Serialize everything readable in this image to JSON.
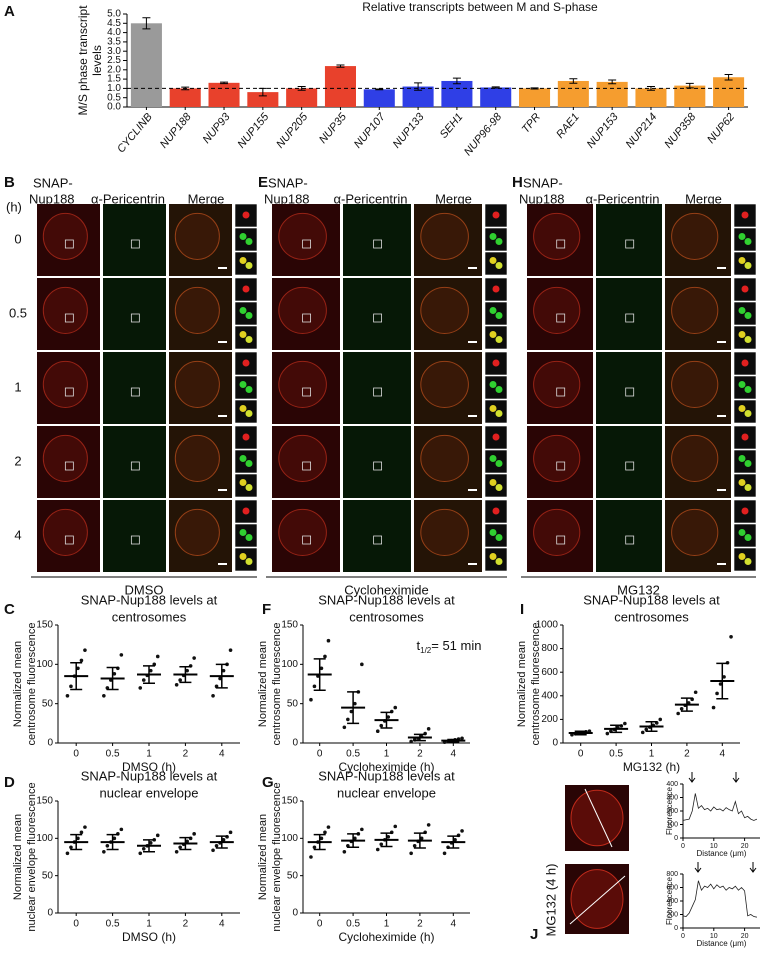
{
  "figure_labels": [
    "A",
    "B",
    "C",
    "D",
    "E",
    "F",
    "G",
    "H",
    "I",
    "J"
  ],
  "time_axis": {
    "unit": "(h)",
    "labels": [
      "0",
      "0.5",
      "1",
      "2",
      "4"
    ]
  },
  "microscopy": [
    {
      "headers": [
        "SNAP-",
        "Nup188",
        "α-Pericentrin",
        "Merge"
      ],
      "treatment": "DMSO"
    },
    {
      "headers": [
        "SNAP-",
        "Nup188",
        "α-Pericentrin",
        "Merge"
      ],
      "treatment": "Cycloheximide"
    },
    {
      "headers": [
        "SNAP-",
        "Nup188",
        "α-Pericentrin",
        "Merge"
      ],
      "treatment": "MG132"
    }
  ],
  "profile_images_label": "MG132 (4 h)",
  "chart_data": [
    {
      "type": "bar",
      "title": "Relative transcripts between M and S-phase",
      "ylabel": [
        "M/S phase transcript",
        "levels"
      ],
      "categories": [
        "CYCLINB",
        "NUP188",
        "NUP93",
        "NUP155",
        "NUP205",
        "NUP35",
        "NUP107",
        "NUP133",
        "SEH1",
        "NUP96-98",
        "TPR",
        "RAE1",
        "NUP153",
        "NUP214",
        "NUP358",
        "NUP62"
      ],
      "values": [
        4.5,
        1.0,
        1.3,
        0.8,
        1.0,
        2.2,
        0.95,
        1.1,
        1.4,
        1.05,
        1.0,
        1.4,
        1.35,
        1.0,
        1.15,
        1.6
      ],
      "errors": [
        0.3,
        0.07,
        0.04,
        0.2,
        0.1,
        0.06,
        0.02,
        0.2,
        0.15,
        0.03,
        0.03,
        0.12,
        0.1,
        0.1,
        0.12,
        0.15
      ],
      "colors": [
        "#9a9a9a",
        "#e8412c",
        "#e8412c",
        "#e8412c",
        "#e8412c",
        "#e8412c",
        "#2f3fe6",
        "#2f3fe6",
        "#2f3fe6",
        "#2f3fe6",
        "#f59d2f",
        "#f59d2f",
        "#f59d2f",
        "#f59d2f",
        "#f59d2f",
        "#f59d2f"
      ],
      "reference_line": 1,
      "ylim": [
        0,
        5
      ],
      "yticks": [
        {
          "value": 0,
          "label": "0.0"
        },
        {
          "value": 0.5,
          "label": "0.5"
        },
        {
          "value": 1,
          "label": "1.0"
        },
        {
          "value": 1.5,
          "label": "1.5"
        },
        {
          "value": 2,
          "label": "2.0"
        },
        {
          "value": 2.5,
          "label": "2.5"
        },
        {
          "value": 3,
          "label": "3.0"
        },
        {
          "value": 3.5,
          "label": "3.5"
        },
        {
          "value": 4,
          "label": "4.0"
        },
        {
          "value": 4.5,
          "label": "4.5"
        },
        {
          "value": 5,
          "label": "5.0"
        }
      ]
    },
    {
      "type": "dotplot",
      "title": [
        "SNAP-Nup188 levels at",
        "centrosomes"
      ],
      "ylabel": [
        "Normalized mean",
        "centrosome fluorescence"
      ],
      "xlabel": "DMSO (h)",
      "categories": [
        "0",
        "0.5",
        "1",
        "2",
        "4"
      ],
      "ylim": [
        0,
        150
      ],
      "yticks": [
        0,
        50,
        100,
        150
      ],
      "points": [
        [
          60,
          72,
          85,
          95,
          105,
          118
        ],
        [
          60,
          70,
          80,
          88,
          95,
          112
        ],
        [
          70,
          80,
          86,
          92,
          100,
          110
        ],
        [
          74,
          80,
          86,
          92,
          98,
          108
        ],
        [
          60,
          72,
          82,
          92,
          100,
          118
        ]
      ],
      "means": [
        85,
        82,
        87,
        87,
        85
      ],
      "sd": [
        17,
        14,
        11,
        10,
        15
      ]
    },
    {
      "type": "dotplot",
      "title": [
        "SNAP-Nup188 levels at",
        "nuclear envelope"
      ],
      "ylabel": [
        "Normalized mean",
        "nuclear envelope fluorescence"
      ],
      "xlabel": "DMSO (h)",
      "categories": [
        "0",
        "0.5",
        "1",
        "2",
        "4"
      ],
      "ylim": [
        0,
        150
      ],
      "yticks": [
        0,
        50,
        100,
        150
      ],
      "points": [
        [
          80,
          88,
          95,
          100,
          108,
          115
        ],
        [
          82,
          90,
          95,
          100,
          106,
          112
        ],
        [
          80,
          86,
          90,
          94,
          98,
          104
        ],
        [
          82,
          88,
          92,
          96,
          100,
          106
        ],
        [
          84,
          90,
          94,
          98,
          102,
          108
        ]
      ],
      "means": [
        95,
        95,
        90,
        93,
        95
      ],
      "sd": [
        10,
        10,
        8,
        8,
        8
      ]
    },
    {
      "type": "dotplot",
      "title": [
        "SNAP-Nup188 levels at",
        "centrosomes"
      ],
      "ylabel": [
        "Normalized mean",
        "centrosome fluorescence"
      ],
      "xlabel": "Cycloheximide (h)",
      "annotation": {
        "symbol": "t",
        "subscript": "1/2",
        "text": "= 51 min"
      },
      "categories": [
        "0",
        "0.5",
        "1",
        "2",
        "4"
      ],
      "ylim": [
        0,
        150
      ],
      "yticks": [
        0,
        50,
        100,
        150
      ],
      "points": [
        [
          55,
          72,
          85,
          95,
          110,
          130
        ],
        [
          20,
          30,
          40,
          50,
          65,
          100
        ],
        [
          15,
          22,
          28,
          33,
          40,
          45
        ],
        [
          2,
          4,
          6,
          8,
          12,
          18
        ],
        [
          1,
          2,
          3,
          4,
          5,
          6
        ]
      ],
      "means": [
        87,
        45,
        29,
        7,
        3
      ],
      "sd": [
        20,
        20,
        10,
        4,
        1.5
      ]
    },
    {
      "type": "dotplot",
      "title": [
        "SNAP-Nup188 levels at",
        "nuclear envelope"
      ],
      "ylabel": [
        "Normalized mean",
        "nuclear envelope fluorescence"
      ],
      "xlabel": "Cycloheximide (h)",
      "categories": [
        "0",
        "0.5",
        "1",
        "2",
        "4"
      ],
      "ylim": [
        0,
        150
      ],
      "yticks": [
        0,
        50,
        100,
        150
      ],
      "points": [
        [
          75,
          88,
          95,
          100,
          108,
          115
        ],
        [
          82,
          90,
          96,
          100,
          106,
          112
        ],
        [
          85,
          92,
          98,
          102,
          108,
          116
        ],
        [
          80,
          90,
          96,
          100,
          108,
          118
        ],
        [
          80,
          88,
          94,
          98,
          104,
          110
        ]
      ],
      "means": [
        95,
        97,
        98,
        97,
        95
      ],
      "sd": [
        10,
        9,
        9,
        10,
        8
      ]
    },
    {
      "type": "dotplot",
      "title": [
        "SNAP-Nup188 levels at",
        "centrosomes"
      ],
      "ylabel": [
        "Normalized mean",
        "centrosome fluorescence"
      ],
      "xlabel": "MG132 (h)",
      "categories": [
        "0",
        "0.5",
        "1",
        "2",
        "4"
      ],
      "ylim": [
        0,
        1000
      ],
      "yticks": [
        0,
        200,
        400,
        600,
        800,
        1000
      ],
      "points": [
        [
          70,
          78,
          85,
          90,
          95,
          100
        ],
        [
          80,
          100,
          115,
          130,
          145,
          165
        ],
        [
          90,
          115,
          135,
          150,
          170,
          200
        ],
        [
          250,
          290,
          320,
          340,
          370,
          430
        ],
        [
          300,
          420,
          500,
          560,
          680,
          900
        ]
      ],
      "means": [
        85,
        120,
        140,
        325,
        525
      ],
      "sd": [
        15,
        30,
        40,
        55,
        150
      ]
    },
    {
      "type": "line",
      "ylabel": "Fluorescence",
      "xlabel": "Distance (μm)",
      "x": [
        0,
        1,
        2,
        3,
        4,
        5,
        6,
        7,
        8,
        9,
        10,
        11,
        12,
        13,
        14,
        15,
        16,
        17,
        18,
        19,
        20,
        21,
        22,
        23,
        24
      ],
      "values": [
        130,
        135,
        140,
        200,
        330,
        220,
        240,
        210,
        220,
        200,
        230,
        210,
        215,
        200,
        225,
        210,
        200,
        270,
        180,
        200,
        150,
        160,
        140,
        130,
        140
      ],
      "xlim": [
        0,
        25
      ],
      "xticks": [
        0,
        10,
        20
      ],
      "ylim": [
        0,
        400
      ],
      "yticks": [
        0,
        100,
        200,
        300,
        400
      ]
    },
    {
      "type": "line",
      "ylabel": "Fluorescence",
      "xlabel": "Distance (μm)",
      "x": [
        0,
        1,
        2,
        3,
        4,
        5,
        6,
        7,
        8,
        9,
        10,
        11,
        12,
        13,
        14,
        15,
        16,
        17,
        18,
        19,
        20,
        21,
        22,
        23,
        24
      ],
      "values": [
        180,
        170,
        220,
        320,
        420,
        700,
        560,
        620,
        600,
        650,
        580,
        640,
        600,
        620,
        560,
        600,
        580,
        620,
        560,
        600,
        550,
        180,
        200,
        170,
        160
      ],
      "xlim": [
        0,
        25
      ],
      "xticks": [
        0,
        10,
        20
      ],
      "ylim": [
        0,
        800
      ],
      "yticks": [
        0,
        200,
        400,
        600,
        800
      ]
    }
  ]
}
